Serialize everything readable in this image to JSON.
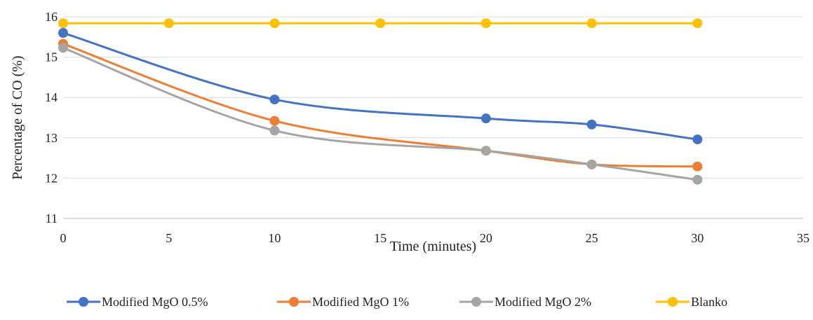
{
  "chart_data": {
    "type": "line",
    "smooth": true,
    "xlabel": "Time (minutes)",
    "ylabel": "Percentage of CO (%)",
    "xlim": [
      0,
      35
    ],
    "ylim": [
      11,
      16
    ],
    "xticks": [
      0,
      5,
      10,
      15,
      20,
      25,
      30,
      35
    ],
    "yticks": [
      11,
      12,
      13,
      14,
      15,
      16
    ],
    "grid": "horizontal",
    "legend_position": "bottom",
    "series": [
      {
        "name": "Modified MgO 0.5%",
        "color": "#4472C4",
        "x": [
          0,
          10,
          20,
          25,
          30
        ],
        "y": [
          15.6,
          13.95,
          13.48,
          13.33,
          12.96
        ]
      },
      {
        "name": "Modified MgO 1%",
        "color": "#ED7D31",
        "x": [
          0,
          10,
          20,
          25,
          30
        ],
        "y": [
          15.33,
          13.42,
          12.68,
          12.34,
          12.29
        ]
      },
      {
        "name": "Modified MgO 2%",
        "color": "#A5A5A5",
        "x": [
          0,
          10,
          20,
          25,
          30
        ],
        "y": [
          15.23,
          13.18,
          12.68,
          12.34,
          11.96
        ]
      },
      {
        "name": "Blanko",
        "color": "#FFC000",
        "x": [
          0,
          5,
          10,
          15,
          20,
          25,
          30
        ],
        "y": [
          15.84,
          15.84,
          15.84,
          15.84,
          15.84,
          15.84,
          15.84
        ]
      }
    ]
  }
}
